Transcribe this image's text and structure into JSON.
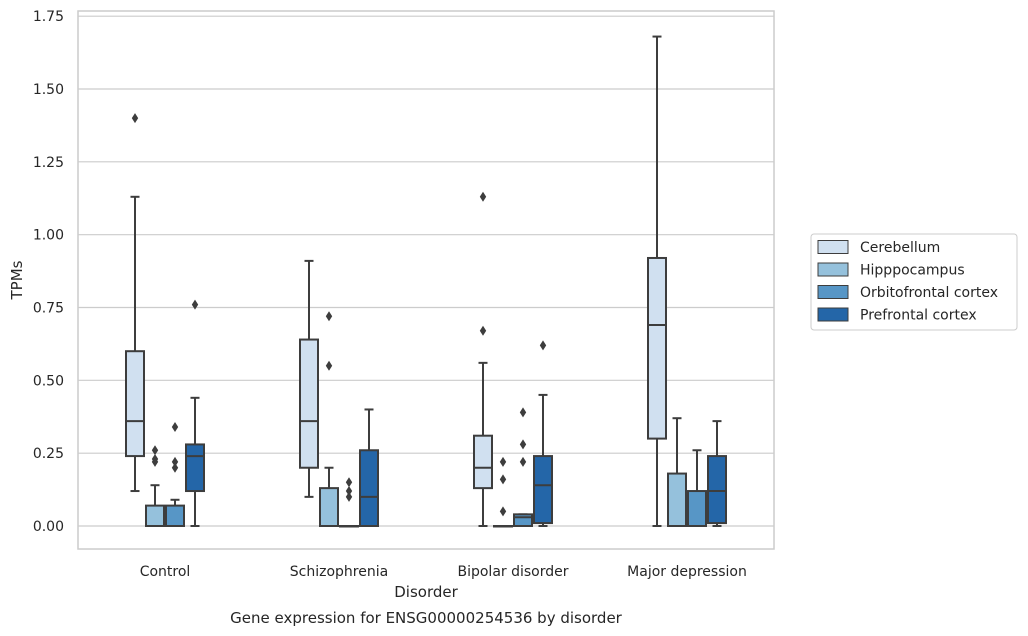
{
  "chart_data": {
    "type": "box",
    "title": "",
    "caption": "Gene expression for ENSG00000254536 by disorder",
    "xlabel": "Disorder",
    "ylabel": "TPMs",
    "ylim": [
      -0.08,
      1.76
    ],
    "yticks": [
      "0.00",
      "0.25",
      "0.50",
      "0.75",
      "1.00",
      "1.25",
      "1.50",
      "1.75"
    ],
    "grid": "horizontal",
    "legend_position": "right",
    "categories": [
      "Control",
      "Schizophrenia",
      "Bipolar disorder",
      "Major depression"
    ],
    "series": [
      {
        "name": "Cerebellum",
        "color": "#d0e0f0",
        "boxes": [
          {
            "whislo": 0.12,
            "q1": 0.24,
            "med": 0.36,
            "q3": 0.6,
            "whishi": 1.13,
            "fliers": [
              1.4
            ]
          },
          {
            "whislo": 0.1,
            "q1": 0.2,
            "med": 0.36,
            "q3": 0.64,
            "whishi": 0.91,
            "fliers": []
          },
          {
            "whislo": 0.0,
            "q1": 0.13,
            "med": 0.2,
            "q3": 0.31,
            "whishi": 0.56,
            "fliers": [
              0.67,
              1.13
            ]
          },
          {
            "whislo": 0.0,
            "q1": 0.3,
            "med": 0.69,
            "q3": 0.92,
            "whishi": 1.68,
            "fliers": []
          }
        ]
      },
      {
        "name": "Hipppocampus",
        "color": "#95c1dc",
        "boxes": [
          {
            "whislo": 0.0,
            "q1": 0.0,
            "med": 0.0,
            "q3": 0.07,
            "whishi": 0.14,
            "fliers": [
              0.22,
              0.23,
              0.26
            ]
          },
          {
            "whislo": 0.0,
            "q1": 0.0,
            "med": 0.0,
            "q3": 0.13,
            "whishi": 0.2,
            "fliers": [
              0.55,
              0.72
            ]
          },
          {
            "whislo": 0.0,
            "q1": 0.0,
            "med": 0.0,
            "q3": 0.0,
            "whishi": 0.0,
            "fliers": [
              0.05,
              0.16,
              0.22
            ]
          },
          {
            "whislo": 0.0,
            "q1": 0.0,
            "med": 0.0,
            "q3": 0.18,
            "whishi": 0.37,
            "fliers": []
          }
        ]
      },
      {
        "name": "Orbitofrontal cortex",
        "color": "#5796c6",
        "boxes": [
          {
            "whislo": 0.0,
            "q1": 0.0,
            "med": 0.0,
            "q3": 0.07,
            "whishi": 0.09,
            "fliers": [
              0.2,
              0.22,
              0.34
            ]
          },
          {
            "whislo": 0.0,
            "q1": 0.0,
            "med": 0.0,
            "q3": 0.0,
            "whishi": 0.0,
            "fliers": [
              0.1,
              0.12,
              0.15
            ]
          },
          {
            "whislo": 0.0,
            "q1": 0.0,
            "med": 0.03,
            "q3": 0.04,
            "whishi": 0.04,
            "fliers": [
              0.22,
              0.28,
              0.39
            ]
          },
          {
            "whislo": 0.0,
            "q1": 0.0,
            "med": 0.0,
            "q3": 0.12,
            "whishi": 0.26,
            "fliers": []
          }
        ]
      },
      {
        "name": "Prefrontal cortex",
        "color": "#2466a8",
        "boxes": [
          {
            "whislo": 0.0,
            "q1": 0.12,
            "med": 0.24,
            "q3": 0.28,
            "whishi": 0.44,
            "fliers": [
              0.76
            ]
          },
          {
            "whislo": 0.0,
            "q1": 0.0,
            "med": 0.1,
            "q3": 0.26,
            "whishi": 0.4,
            "fliers": []
          },
          {
            "whislo": 0.0,
            "q1": 0.01,
            "med": 0.14,
            "q3": 0.24,
            "whishi": 0.45,
            "fliers": [
              0.62
            ]
          },
          {
            "whislo": 0.0,
            "q1": 0.01,
            "med": 0.12,
            "q3": 0.24,
            "whishi": 0.36,
            "fliers": []
          }
        ]
      }
    ]
  }
}
